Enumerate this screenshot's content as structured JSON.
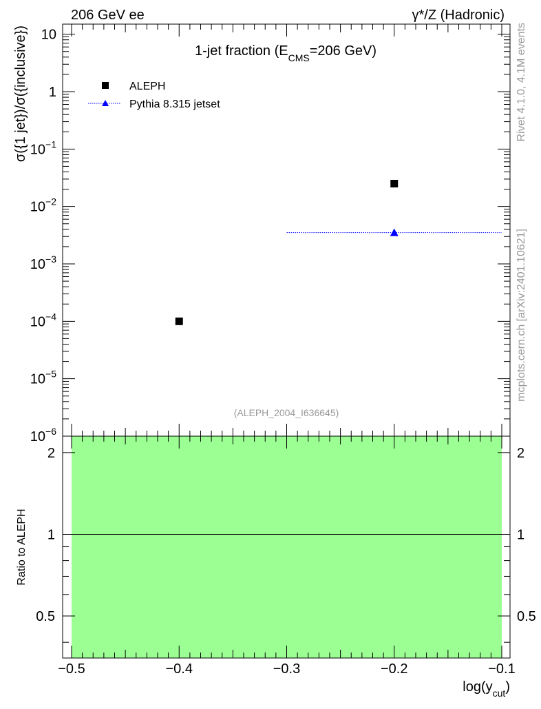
{
  "header": {
    "left": "206 GeV ee",
    "right": "γ*/Z (Hadronic)"
  },
  "side_labels": {
    "rivet": "Rivet 4.1.0,  4.1M events",
    "mcplots": "mcplots.cern.ch [arXiv:2401.10621]"
  },
  "chart_data": [
    {
      "type": "scatter",
      "title_main": "1-jet fraction (E",
      "title_sub": "CMS",
      "title_end": "=206 GeV)",
      "ylabel": "σ({1 jet})/σ({inclusive})",
      "xlim": [
        -0.5,
        -0.1
      ],
      "ylim": [
        1e-06,
        15
      ],
      "yscale": "log",
      "y_tick_labels": [
        {
          "value": 10,
          "base": "10",
          "exp": ""
        },
        {
          "value": 1,
          "base": "1",
          "exp": ""
        },
        {
          "value": 0.1,
          "base": "10",
          "exp": "−1"
        },
        {
          "value": 0.01,
          "base": "10",
          "exp": "−2"
        },
        {
          "value": 0.001,
          "base": "10",
          "exp": "−3"
        },
        {
          "value": 0.0001,
          "base": "10",
          "exp": "−4"
        },
        {
          "value": 1e-05,
          "base": "10",
          "exp": "−5"
        },
        {
          "value": 1e-06,
          "base": "10",
          "exp": "−6"
        }
      ],
      "watermark": "(ALEPH_2004_I636645)",
      "legend_position": "top-left",
      "series": [
        {
          "name": "ALEPH",
          "color": "#000000",
          "marker": "square",
          "points": [
            {
              "x": -0.4,
              "y": 0.0001
            },
            {
              "x": -0.2,
              "y": 0.025
            }
          ]
        },
        {
          "name": "Pythia 8.315 jetset",
          "color": "#0000ff",
          "marker": "triangle",
          "style": "dotted",
          "points": [
            {
              "x": -0.2,
              "y": 0.0035,
              "xmin": -0.3,
              "xmax": -0.1
            }
          ]
        }
      ]
    },
    {
      "type": "area",
      "ylabel": "Ratio to ALEPH",
      "xlabel_main": "log(y",
      "xlabel_sub": "cut",
      "xlabel_end": ")",
      "xlim": [
        -0.5,
        -0.1
      ],
      "ylim": [
        0.35,
        2.3
      ],
      "yscale": "log",
      "band": {
        "xmin": -0.5,
        "xmax": -0.1,
        "ymin": 0.35,
        "ymax": 2.3,
        "color": "#9cff94"
      },
      "reference_line": 1,
      "x_ticks": [
        {
          "value": -0.5,
          "label": "−0.5"
        },
        {
          "value": -0.4,
          "label": "−0.4"
        },
        {
          "value": -0.3,
          "label": "−0.3"
        },
        {
          "value": -0.2,
          "label": "−0.2"
        },
        {
          "value": -0.1,
          "label": "−0.1"
        }
      ],
      "y_ticks": [
        {
          "value": 2,
          "label": "2"
        },
        {
          "value": 1,
          "label": "1"
        },
        {
          "value": 0.5,
          "label": "0.5"
        }
      ]
    }
  ]
}
